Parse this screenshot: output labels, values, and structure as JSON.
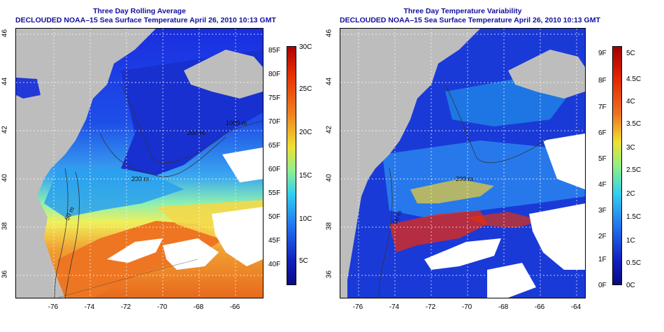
{
  "left_panel": {
    "title_line1": "Three Day Rolling Average",
    "title_line2": "DECLOUDED NOAA–15 Sea Surface Temperature April 26, 2010 10:13 GMT",
    "contour_labels": [
      "1000 m",
      "200 m",
      "50 m",
      "200 m"
    ],
    "colorbar_f_labels": [
      "85F",
      "80F",
      "75F",
      "70F",
      "65F",
      "60F",
      "55F",
      "50F",
      "45F",
      "40F"
    ],
    "colorbar_c_labels": [
      "30C",
      "25C",
      "20C",
      "15C",
      "10C",
      "5C"
    ]
  },
  "right_panel": {
    "title_line1": "Three Day Temperature Variability",
    "title_line2": "DECLOUDED NOAA–15 Sea Surface Temperature April 26, 2010 10:13 GMT",
    "contour_labels": [
      "200 m",
      "50 m"
    ],
    "colorbar_f_labels": [
      "9F",
      "8F",
      "7F",
      "6F",
      "5F",
      "4F",
      "3F",
      "2F",
      "1F",
      "0F"
    ],
    "colorbar_c_labels": [
      "5C",
      "4.5C",
      "4C",
      "3.5C",
      "3C",
      "2.5C",
      "2C",
      "1.5C",
      "1C",
      "0.5C",
      "0C"
    ]
  },
  "axes": {
    "lat_labels": [
      "46",
      "44",
      "42",
      "40",
      "38",
      "36"
    ],
    "lon_labels": [
      "-76",
      "-74",
      "-72",
      "-70",
      "-68",
      "-66",
      "-64"
    ]
  },
  "colors": {
    "land": "#bdbdbd",
    "title": "#1010a0",
    "warm": "#e8601a",
    "cold": "#1030c8"
  }
}
